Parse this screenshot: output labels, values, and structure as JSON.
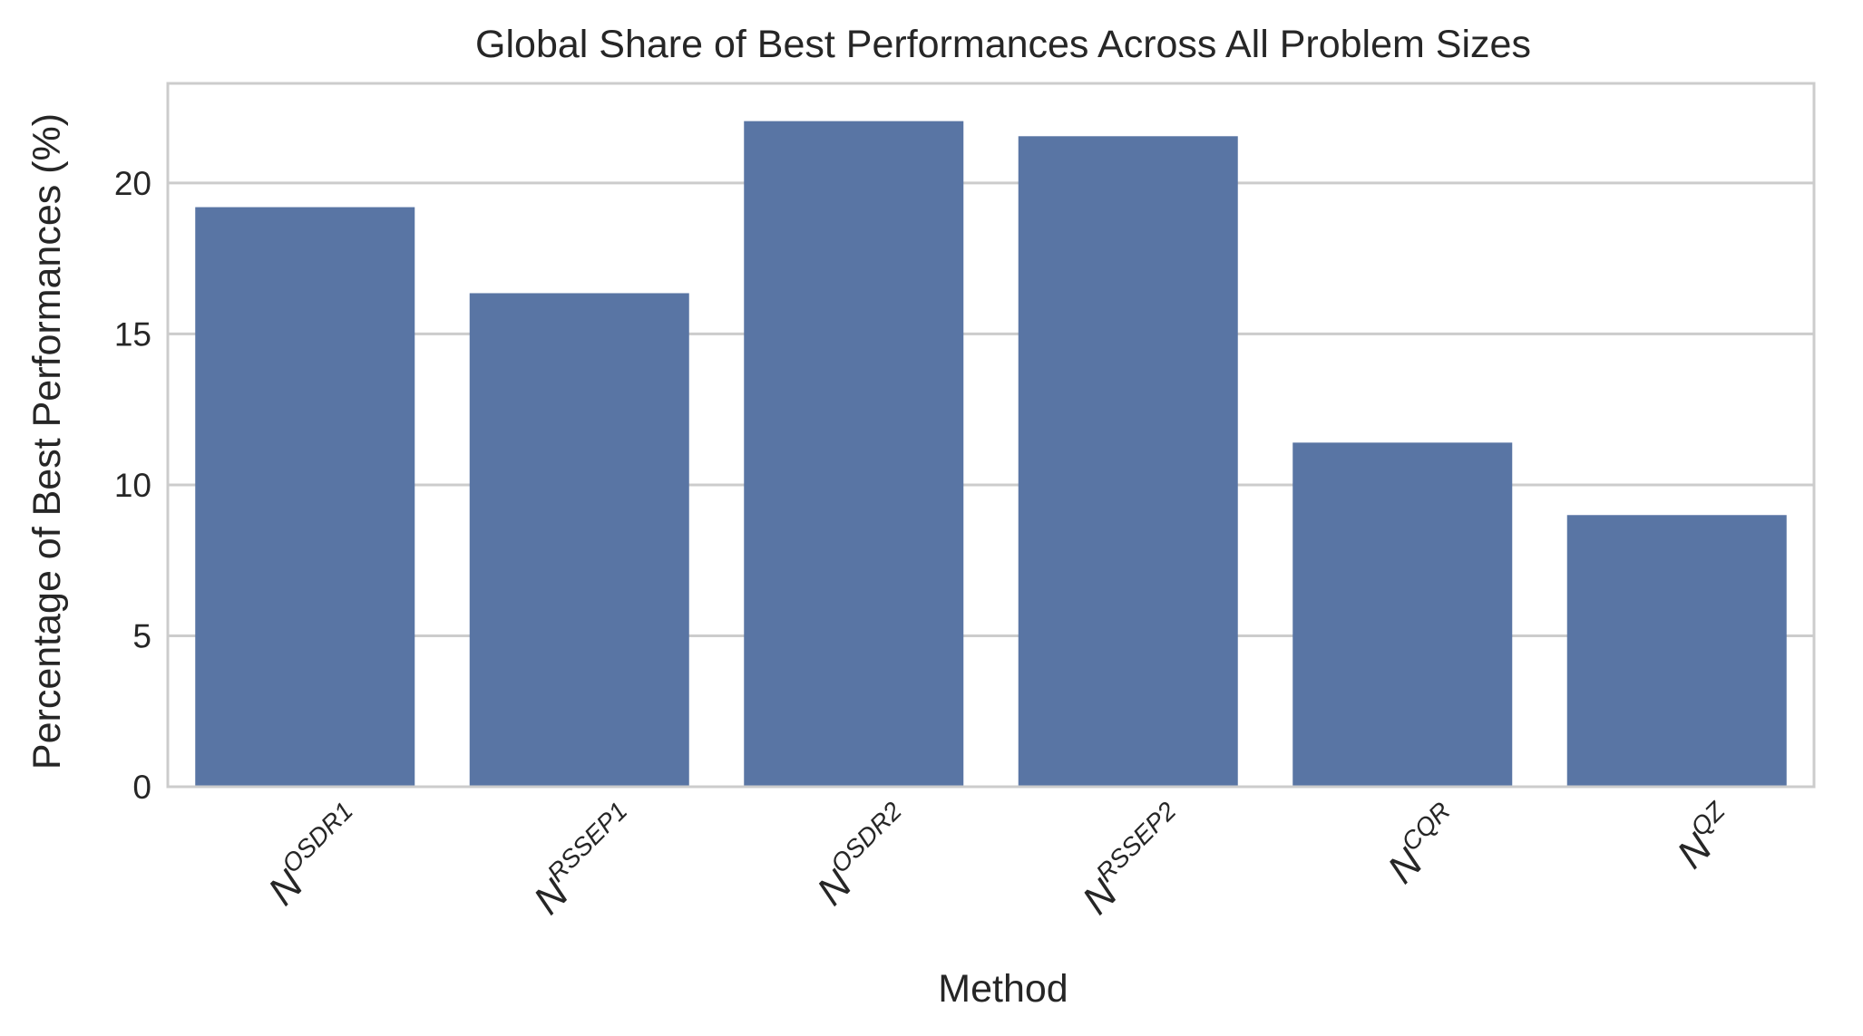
{
  "chart_data": {
    "type": "bar",
    "title": "Global Share of Best Performances Across All Problem Sizes",
    "xlabel": "Method",
    "ylabel": "Percentage of Best Performances (%)",
    "categories": [
      {
        "base": "N",
        "sup": "OSDR1"
      },
      {
        "base": "N",
        "sup": "RSSEP1"
      },
      {
        "base": "N",
        "sup": "OSDR2"
      },
      {
        "base": "N",
        "sup": "RSSEP2"
      },
      {
        "base": "N",
        "sup": "CQR"
      },
      {
        "base": "N",
        "sup": "QZ"
      }
    ],
    "values": [
      19.2,
      16.35,
      22.05,
      21.55,
      11.4,
      9.0
    ],
    "ylim": [
      0,
      23.3
    ],
    "yticks": [
      "0",
      "5",
      "10",
      "15",
      "20"
    ],
    "ytick_values": [
      0,
      5,
      10,
      15,
      20
    ],
    "grid": "horizontal",
    "colors": {
      "bar": "#5975a4",
      "grid": "#cccccc",
      "frame": "#cccccc",
      "text": "#262626"
    }
  }
}
